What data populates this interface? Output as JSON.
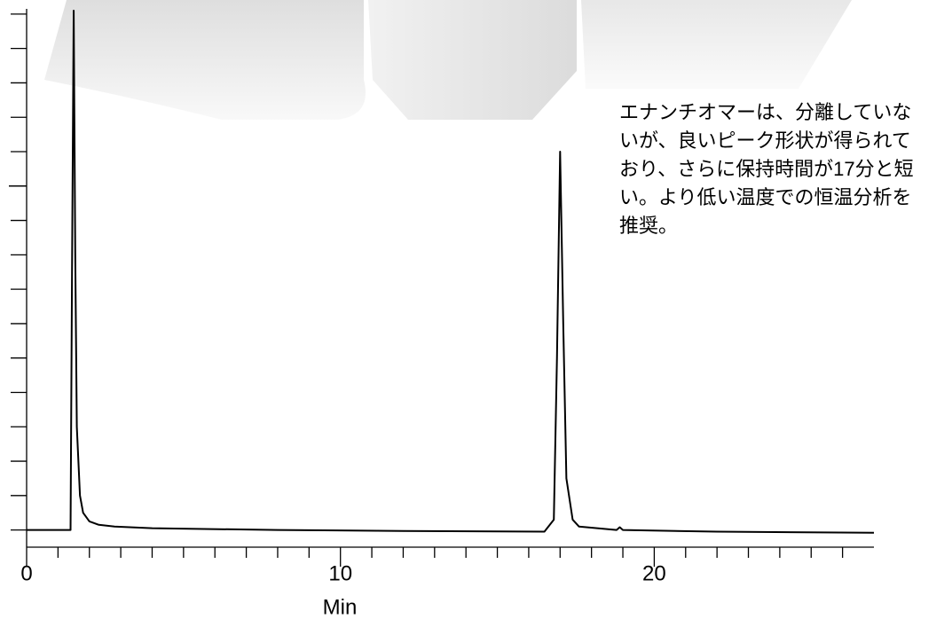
{
  "chart_data": {
    "type": "line",
    "x_label": "Min",
    "annotation": [
      "エナンチオマーは、分離していな",
      "いが、良いピーク形状が得られて",
      "おり、さらに保持時間が17分と短",
      "い。より低い温度での恒温分析を",
      "推奨。"
    ],
    "xlim": [
      0,
      27
    ],
    "xticks": [
      0,
      10,
      20
    ],
    "xminorticks": [
      1,
      2,
      3,
      4,
      5,
      6,
      7,
      8,
      9,
      11,
      12,
      13,
      14,
      15,
      16,
      17,
      18,
      19,
      21,
      22,
      23,
      24,
      25,
      26
    ],
    "ylim": [
      -0.5,
      15.1
    ],
    "yticks": [
      0,
      1,
      2,
      3,
      4,
      5,
      6,
      7,
      8,
      9,
      10,
      11,
      12,
      13,
      14,
      15
    ],
    "ymajorticks": [
      10
    ],
    "series": [
      {
        "color": "#000000",
        "x": [
          0,
          1.4,
          1.45,
          1.5,
          1.55,
          1.6,
          1.7,
          1.8,
          2.0,
          2.3,
          2.8,
          4,
          8,
          12,
          16.5,
          16.8,
          16.9,
          17.0,
          17.1,
          17.2,
          17.4,
          17.6,
          18.8,
          18.9,
          19.0,
          22,
          27
        ],
        "values": [
          0,
          0,
          8,
          15.1,
          8,
          3,
          1,
          0.5,
          0.25,
          0.15,
          0.1,
          0.05,
          0,
          -0.03,
          -0.05,
          0.3,
          5,
          11,
          6,
          1.5,
          0.3,
          0.1,
          0,
          0.08,
          0,
          -0.05,
          -0.08
        ]
      }
    ]
  }
}
